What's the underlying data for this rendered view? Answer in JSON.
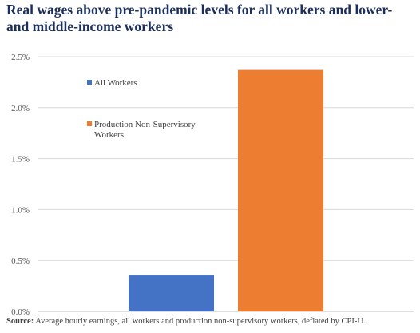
{
  "title_lines": [
    "Real wages above pre-pandemic levels for all workers and lower-",
    "and middle-income workers"
  ],
  "source_label": "Source:",
  "source_text": "Average hourly earnings, all workers and production non-supervisory workers, deflated by CPI-U.",
  "chart_data": {
    "type": "bar",
    "categories": [
      ""
    ],
    "series": [
      {
        "name": "All Workers",
        "legend_lines": [
          "All Workers"
        ],
        "color": "#4472c4",
        "values": [
          0.36
        ]
      },
      {
        "name": "Production Non-Supervisory Workers",
        "legend_lines": [
          "Production Non-Supervisory",
          "Workers"
        ],
        "color": "#ed7d31",
        "values": [
          2.37
        ]
      }
    ],
    "ylim": [
      0,
      2.5
    ],
    "yticks": [
      0,
      0.5,
      1.0,
      1.5,
      2.0,
      2.5
    ],
    "ytick_labels": [
      "0.0%",
      "0.5%",
      "1.0%",
      "1.5%",
      "2.0%",
      "2.5%"
    ],
    "unit": "%",
    "grid": true,
    "legend_position": "upper-left inside plot",
    "grid_color": "#d9d9d9"
  }
}
